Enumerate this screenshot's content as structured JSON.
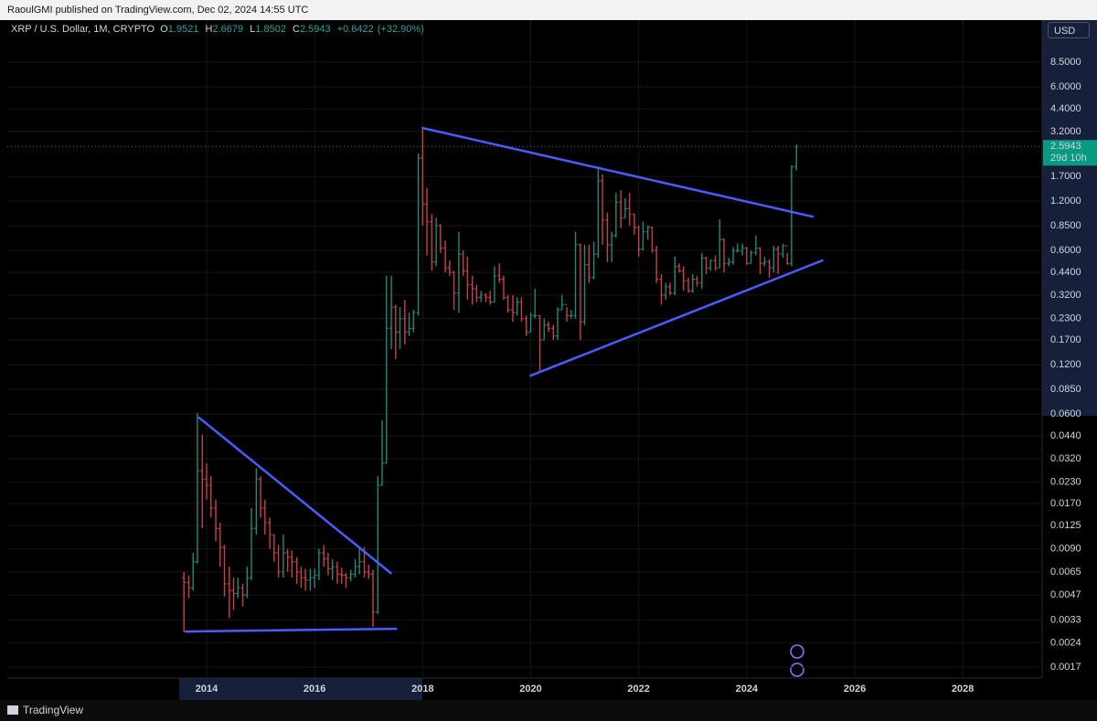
{
  "publisher_note": "RaoulGMI published on TradingView.com, Dec 02, 2024 14:55 UTC",
  "brand": "TradingView",
  "chart_data": {
    "type": "ohlc",
    "title": "XRP / U.S. Dollar, 1M, CRYPTO",
    "ohlc_labels": [
      "O",
      "H",
      "L",
      "C"
    ],
    "change": "+0.6422",
    "change_pct": "(+32.90%)",
    "currency": "USD",
    "countdown": "29d 10h",
    "log_scale": true,
    "grid": true,
    "up_color": "#1e8a78",
    "down_color": "#c8414a",
    "line_color": "#4a5cff",
    "xlim": [
      2010.31,
      2029.47
    ],
    "xticks": [
      2014,
      2016,
      2018,
      2020,
      2022,
      2024,
      2026,
      2028
    ],
    "ylim": [
      0.00146,
      15.35
    ],
    "yticks": [
      {
        "value": 8.5,
        "label": "8.5000"
      },
      {
        "value": 6,
        "label": "6.0000"
      },
      {
        "value": 4.4,
        "label": "4.4000"
      },
      {
        "value": 3.2,
        "label": "3.2000"
      },
      {
        "value": 1.7,
        "label": "1.7000"
      },
      {
        "value": 1.2,
        "label": "1.2000"
      },
      {
        "value": 0.85,
        "label": "0.8500"
      },
      {
        "value": 0.6,
        "label": "0.6000"
      },
      {
        "value": 0.44,
        "label": "0.4400"
      },
      {
        "value": 0.32,
        "label": "0.3200"
      },
      {
        "value": 0.23,
        "label": "0.2300"
      },
      {
        "value": 0.17,
        "label": "0.1700"
      },
      {
        "value": 0.12,
        "label": "0.1200"
      },
      {
        "value": 0.085,
        "label": "0.0850"
      },
      {
        "value": 0.06,
        "label": "0.0600"
      },
      {
        "value": 0.044,
        "label": "0.0440"
      },
      {
        "value": 0.032,
        "label": "0.0320"
      },
      {
        "value": 0.023,
        "label": "0.0230"
      },
      {
        "value": 0.017,
        "label": "0.0170"
      },
      {
        "value": 0.0125,
        "label": "0.0125"
      },
      {
        "value": 0.009,
        "label": "0.0090"
      },
      {
        "value": 0.0065,
        "label": "0.0065"
      },
      {
        "value": 0.0047,
        "label": "0.0047"
      },
      {
        "value": 0.0033,
        "label": "0.0033"
      },
      {
        "value": 0.0024,
        "label": "0.0024"
      },
      {
        "value": 0.0017,
        "label": "0.0017"
      }
    ],
    "ohlc": {
      "x": [
        2013.58,
        2013.67,
        2013.75,
        2013.83,
        2013.92,
        2014.0,
        2014.08,
        2014.17,
        2014.25,
        2014.33,
        2014.42,
        2014.5,
        2014.58,
        2014.67,
        2014.75,
        2014.83,
        2014.92,
        2015.0,
        2015.08,
        2015.17,
        2015.25,
        2015.33,
        2015.42,
        2015.5,
        2015.58,
        2015.67,
        2015.75,
        2015.83,
        2015.92,
        2016.0,
        2016.08,
        2016.17,
        2016.25,
        2016.33,
        2016.42,
        2016.5,
        2016.58,
        2016.67,
        2016.75,
        2016.83,
        2016.92,
        2017.0,
        2017.08,
        2017.17,
        2017.25,
        2017.33,
        2017.42,
        2017.5,
        2017.58,
        2017.67,
        2017.75,
        2017.83,
        2017.92,
        2018.0,
        2018.08,
        2018.17,
        2018.25,
        2018.33,
        2018.42,
        2018.5,
        2018.58,
        2018.67,
        2018.75,
        2018.83,
        2018.92,
        2019.0,
        2019.08,
        2019.17,
        2019.25,
        2019.33,
        2019.42,
        2019.5,
        2019.58,
        2019.67,
        2019.75,
        2019.83,
        2019.92,
        2020.0,
        2020.08,
        2020.17,
        2020.25,
        2020.33,
        2020.42,
        2020.5,
        2020.58,
        2020.67,
        2020.75,
        2020.83,
        2020.92,
        2021.0,
        2021.08,
        2021.17,
        2021.25,
        2021.33,
        2021.42,
        2021.5,
        2021.58,
        2021.67,
        2021.75,
        2021.83,
        2021.92,
        2022.0,
        2022.08,
        2022.17,
        2022.25,
        2022.33,
        2022.42,
        2022.5,
        2022.58,
        2022.67,
        2022.75,
        2022.83,
        2022.92,
        2023.0,
        2023.08,
        2023.17,
        2023.25,
        2023.33,
        2023.42,
        2023.5,
        2023.58,
        2023.67,
        2023.75,
        2023.83,
        2023.92,
        2024.0,
        2024.08,
        2024.17,
        2024.25,
        2024.33,
        2024.42,
        2024.5,
        2024.58,
        2024.67,
        2024.75,
        2024.83,
        2024.92
      ],
      "open": [
        0.006,
        0.0056,
        0.0052,
        0.0075,
        0.027,
        0.024,
        0.022,
        0.016,
        0.012,
        0.0092,
        0.0055,
        0.005,
        0.0048,
        0.0052,
        0.0047,
        0.006,
        0.012,
        0.024,
        0.016,
        0.013,
        0.011,
        0.0085,
        0.0065,
        0.0085,
        0.008,
        0.0075,
        0.0065,
        0.006,
        0.0058,
        0.006,
        0.0062,
        0.0085,
        0.0078,
        0.0068,
        0.007,
        0.0063,
        0.0062,
        0.006,
        0.0063,
        0.007,
        0.0075,
        0.0065,
        0.0063,
        0.0037,
        0.022,
        0.03,
        0.2,
        0.27,
        0.19,
        0.23,
        0.19,
        0.2,
        0.25,
        2.2,
        1.15,
        0.9,
        0.51,
        0.85,
        0.62,
        0.47,
        0.44,
        0.33,
        0.57,
        0.45,
        0.37,
        0.35,
        0.31,
        0.32,
        0.31,
        0.29,
        0.42,
        0.4,
        0.31,
        0.26,
        0.25,
        0.29,
        0.23,
        0.19,
        0.24,
        0.24,
        0.17,
        0.21,
        0.2,
        0.18,
        0.26,
        0.28,
        0.24,
        0.24,
        0.65,
        0.22,
        0.49,
        0.41,
        0.57,
        1.6,
        0.92,
        0.65,
        0.74,
        1.18,
        0.95,
        1.08,
        1.0,
        0.83,
        0.61,
        0.78,
        0.83,
        0.6,
        0.4,
        0.32,
        0.36,
        0.33,
        0.48,
        0.45,
        0.39,
        0.34,
        0.4,
        0.38,
        0.54,
        0.47,
        0.52,
        0.47,
        0.7,
        0.5,
        0.51,
        0.6,
        0.6,
        0.62,
        0.5,
        0.58,
        0.62,
        0.5,
        0.51,
        0.47,
        0.61,
        0.57,
        0.64,
        0.5,
        1.9521
      ],
      "high": [
        0.0065,
        0.0062,
        0.0085,
        0.061,
        0.045,
        0.03,
        0.025,
        0.018,
        0.013,
        0.0095,
        0.007,
        0.006,
        0.006,
        0.0055,
        0.007,
        0.016,
        0.028,
        0.025,
        0.018,
        0.014,
        0.011,
        0.0095,
        0.011,
        0.009,
        0.0088,
        0.008,
        0.007,
        0.0068,
        0.0068,
        0.0068,
        0.009,
        0.0095,
        0.0085,
        0.0078,
        0.0075,
        0.0069,
        0.0064,
        0.0067,
        0.0078,
        0.0093,
        0.0092,
        0.0072,
        0.0067,
        0.025,
        0.055,
        0.42,
        0.42,
        0.28,
        0.27,
        0.3,
        0.25,
        0.26,
        2.35,
        3.3,
        1.45,
        1.0,
        0.95,
        0.87,
        0.69,
        0.52,
        0.45,
        0.78,
        0.6,
        0.55,
        0.42,
        0.37,
        0.34,
        0.33,
        0.34,
        0.48,
        0.5,
        0.42,
        0.32,
        0.32,
        0.31,
        0.31,
        0.24,
        0.25,
        0.35,
        0.24,
        0.23,
        0.22,
        0.21,
        0.27,
        0.32,
        0.27,
        0.26,
        0.78,
        0.66,
        0.65,
        0.65,
        0.68,
        1.96,
        1.75,
        1.02,
        0.78,
        1.35,
        1.4,
        1.25,
        1.35,
        1.0,
        0.85,
        0.9,
        0.85,
        0.84,
        0.64,
        0.43,
        0.38,
        0.38,
        0.55,
        0.5,
        0.48,
        0.41,
        0.43,
        0.42,
        0.58,
        0.55,
        0.53,
        0.56,
        0.93,
        0.71,
        0.54,
        0.63,
        0.66,
        0.66,
        0.63,
        0.6,
        0.74,
        0.63,
        0.55,
        0.53,
        0.64,
        0.64,
        0.66,
        0.58,
        1.98,
        2.6679
      ],
      "low": [
        0.0028,
        0.0045,
        0.005,
        0.0073,
        0.012,
        0.018,
        0.014,
        0.01,
        0.007,
        0.0046,
        0.0034,
        0.0038,
        0.0045,
        0.004,
        0.0045,
        0.0058,
        0.011,
        0.014,
        0.011,
        0.009,
        0.0075,
        0.006,
        0.006,
        0.0065,
        0.006,
        0.0055,
        0.0052,
        0.005,
        0.005,
        0.0052,
        0.0058,
        0.007,
        0.0062,
        0.0058,
        0.0055,
        0.0055,
        0.0052,
        0.0057,
        0.006,
        0.0063,
        0.006,
        0.0059,
        0.003,
        0.0036,
        0.022,
        0.03,
        0.15,
        0.13,
        0.15,
        0.16,
        0.18,
        0.19,
        0.24,
        0.85,
        0.56,
        0.45,
        0.48,
        0.58,
        0.44,
        0.42,
        0.26,
        0.25,
        0.42,
        0.3,
        0.28,
        0.29,
        0.29,
        0.29,
        0.28,
        0.29,
        0.38,
        0.3,
        0.25,
        0.22,
        0.24,
        0.22,
        0.18,
        0.19,
        0.23,
        0.11,
        0.17,
        0.19,
        0.17,
        0.17,
        0.26,
        0.22,
        0.23,
        0.23,
        0.17,
        0.21,
        0.38,
        0.4,
        0.54,
        0.65,
        0.51,
        0.51,
        0.72,
        0.82,
        0.95,
        0.85,
        0.75,
        0.55,
        0.6,
        0.7,
        0.58,
        0.38,
        0.28,
        0.3,
        0.32,
        0.32,
        0.44,
        0.34,
        0.33,
        0.33,
        0.36,
        0.35,
        0.43,
        0.45,
        0.45,
        0.47,
        0.44,
        0.48,
        0.49,
        0.58,
        0.56,
        0.49,
        0.5,
        0.56,
        0.43,
        0.48,
        0.41,
        0.44,
        0.43,
        0.54,
        0.49,
        0.48,
        1.8502
      ],
      "close": [
        0.0056,
        0.0052,
        0.0075,
        0.027,
        0.024,
        0.022,
        0.016,
        0.012,
        0.0092,
        0.0055,
        0.005,
        0.0048,
        0.0052,
        0.0047,
        0.006,
        0.012,
        0.024,
        0.016,
        0.013,
        0.011,
        0.0085,
        0.0065,
        0.0085,
        0.008,
        0.0075,
        0.0065,
        0.006,
        0.0058,
        0.006,
        0.0062,
        0.0085,
        0.0078,
        0.0068,
        0.007,
        0.0063,
        0.0062,
        0.006,
        0.0063,
        0.007,
        0.0075,
        0.0065,
        0.0063,
        0.0037,
        0.022,
        0.03,
        0.2,
        0.27,
        0.19,
        0.23,
        0.19,
        0.2,
        0.25,
        2.2,
        1.15,
        0.9,
        0.51,
        0.85,
        0.62,
        0.47,
        0.44,
        0.33,
        0.57,
        0.45,
        0.37,
        0.35,
        0.31,
        0.32,
        0.31,
        0.29,
        0.42,
        0.4,
        0.31,
        0.26,
        0.25,
        0.29,
        0.23,
        0.19,
        0.24,
        0.24,
        0.17,
        0.21,
        0.2,
        0.18,
        0.26,
        0.28,
        0.24,
        0.24,
        0.65,
        0.22,
        0.49,
        0.41,
        0.57,
        1.6,
        0.92,
        0.65,
        0.74,
        1.18,
        0.95,
        1.08,
        1.0,
        0.83,
        0.61,
        0.78,
        0.83,
        0.6,
        0.4,
        0.32,
        0.36,
        0.33,
        0.48,
        0.45,
        0.39,
        0.34,
        0.4,
        0.38,
        0.54,
        0.47,
        0.52,
        0.47,
        0.7,
        0.5,
        0.51,
        0.6,
        0.6,
        0.62,
        0.5,
        0.58,
        0.62,
        0.5,
        0.51,
        0.47,
        0.61,
        0.57,
        0.64,
        0.5,
        1.9521,
        2.5943
      ]
    },
    "trendlines": [
      {
        "x": [
          2013.86,
          2017.41
        ],
        "y": [
          0.057,
          0.0064
        ]
      },
      {
        "x": [
          2013.61,
          2017.51
        ],
        "y": [
          0.00281,
          0.00292
        ]
      },
      {
        "x": [
          2018.0,
          2025.22
        ],
        "y": [
          3.36,
          0.966
        ]
      },
      {
        "x": [
          2020.0,
          2025.4
        ],
        "y": [
          0.103,
          0.521
        ]
      }
    ]
  }
}
